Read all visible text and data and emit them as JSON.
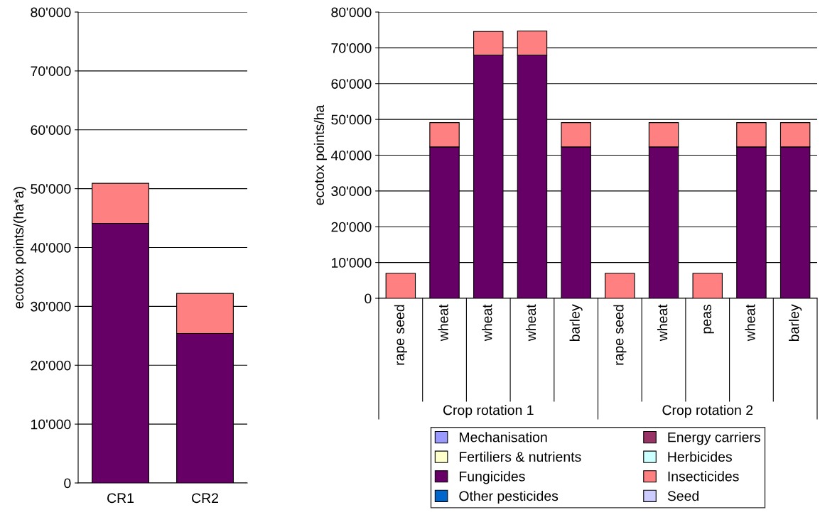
{
  "chart_data": [
    {
      "type": "bar",
      "stacked": true,
      "ylabel": "ecotox points/(ha*a)",
      "categories": [
        "CR1",
        "CR2"
      ],
      "ylim": [
        0,
        80000
      ],
      "yticks": [
        0,
        {
          "value": 10000,
          "label": "10'000"
        },
        {
          "value": 20000,
          "label": "20'000"
        },
        {
          "value": 30000,
          "label": "30'000"
        },
        {
          "value": 40000,
          "label": "40'000"
        },
        {
          "value": 50000,
          "label": "50'000"
        },
        {
          "value": 60000,
          "label": "60'000"
        },
        {
          "value": 70000,
          "label": "70'000"
        },
        {
          "value": 80000,
          "label": "80'000"
        }
      ],
      "grid": "y",
      "legend": false,
      "series": [
        {
          "color": "#660066",
          "values": [
            44100,
            25400
          ]
        },
        {
          "color": "#ff8080",
          "values": [
            6800,
            6800
          ]
        }
      ]
    },
    {
      "type": "bar",
      "stacked": true,
      "ylabel": "ecotox points/ha",
      "categories": [
        "rape seed",
        "wheat",
        "wheat",
        "wheat",
        "barley",
        "rape seed",
        "wheat",
        "peas",
        "wheat",
        "barley"
      ],
      "annotations": [
        "Crop rotation 1",
        "Crop rotation 2"
      ],
      "ylim": [
        0,
        80000
      ],
      "yticks": [
        0,
        {
          "value": 10000,
          "label": "10'000"
        },
        {
          "value": 20000,
          "label": "20'000"
        },
        {
          "value": 30000,
          "label": "30'000"
        },
        {
          "value": 40000,
          "label": "40'000"
        },
        {
          "value": 50000,
          "label": "50'000"
        },
        {
          "value": 60000,
          "label": "60'000"
        },
        {
          "value": 70000,
          "label": "70'000"
        },
        {
          "value": 80000,
          "label": "80'000"
        }
      ],
      "grid": "y",
      "legend": "bottom",
      "series": [
        {
          "name": "Mechanisation",
          "color": "#9999ff",
          "values": [
            0,
            0,
            0,
            0,
            0,
            0,
            0,
            0,
            0,
            0
          ]
        },
        {
          "name": "Energy carriers",
          "color": "#993366",
          "values": [
            0,
            0,
            0,
            0,
            0,
            0,
            0,
            0,
            0,
            0
          ]
        },
        {
          "name": "Fertiliers & nutrients",
          "color": "#ffffcc",
          "values": [
            0,
            0,
            0,
            0,
            0,
            0,
            0,
            0,
            0,
            0
          ]
        },
        {
          "name": "Herbicides",
          "color": "#ccffff",
          "values": [
            0,
            0,
            0,
            0,
            0,
            0,
            0,
            0,
            0,
            0
          ]
        },
        {
          "name": "Fungicides",
          "color": "#660066",
          "values": [
            0,
            42300,
            68000,
            68000,
            42300,
            0,
            42300,
            0,
            42300,
            42300
          ]
        },
        {
          "name": "Insecticides",
          "color": "#ff8080",
          "values": [
            7000,
            6800,
            6600,
            6700,
            6800,
            7000,
            6800,
            7000,
            6800,
            6800
          ]
        },
        {
          "name": "Other pesticides",
          "color": "#0066cc",
          "values": [
            0,
            0,
            0,
            0,
            0,
            0,
            0,
            0,
            0,
            0
          ]
        },
        {
          "name": "Seed",
          "color": "#ccccff",
          "values": [
            0,
            0,
            0,
            0,
            0,
            0,
            0,
            0,
            0,
            0
          ]
        }
      ]
    }
  ]
}
